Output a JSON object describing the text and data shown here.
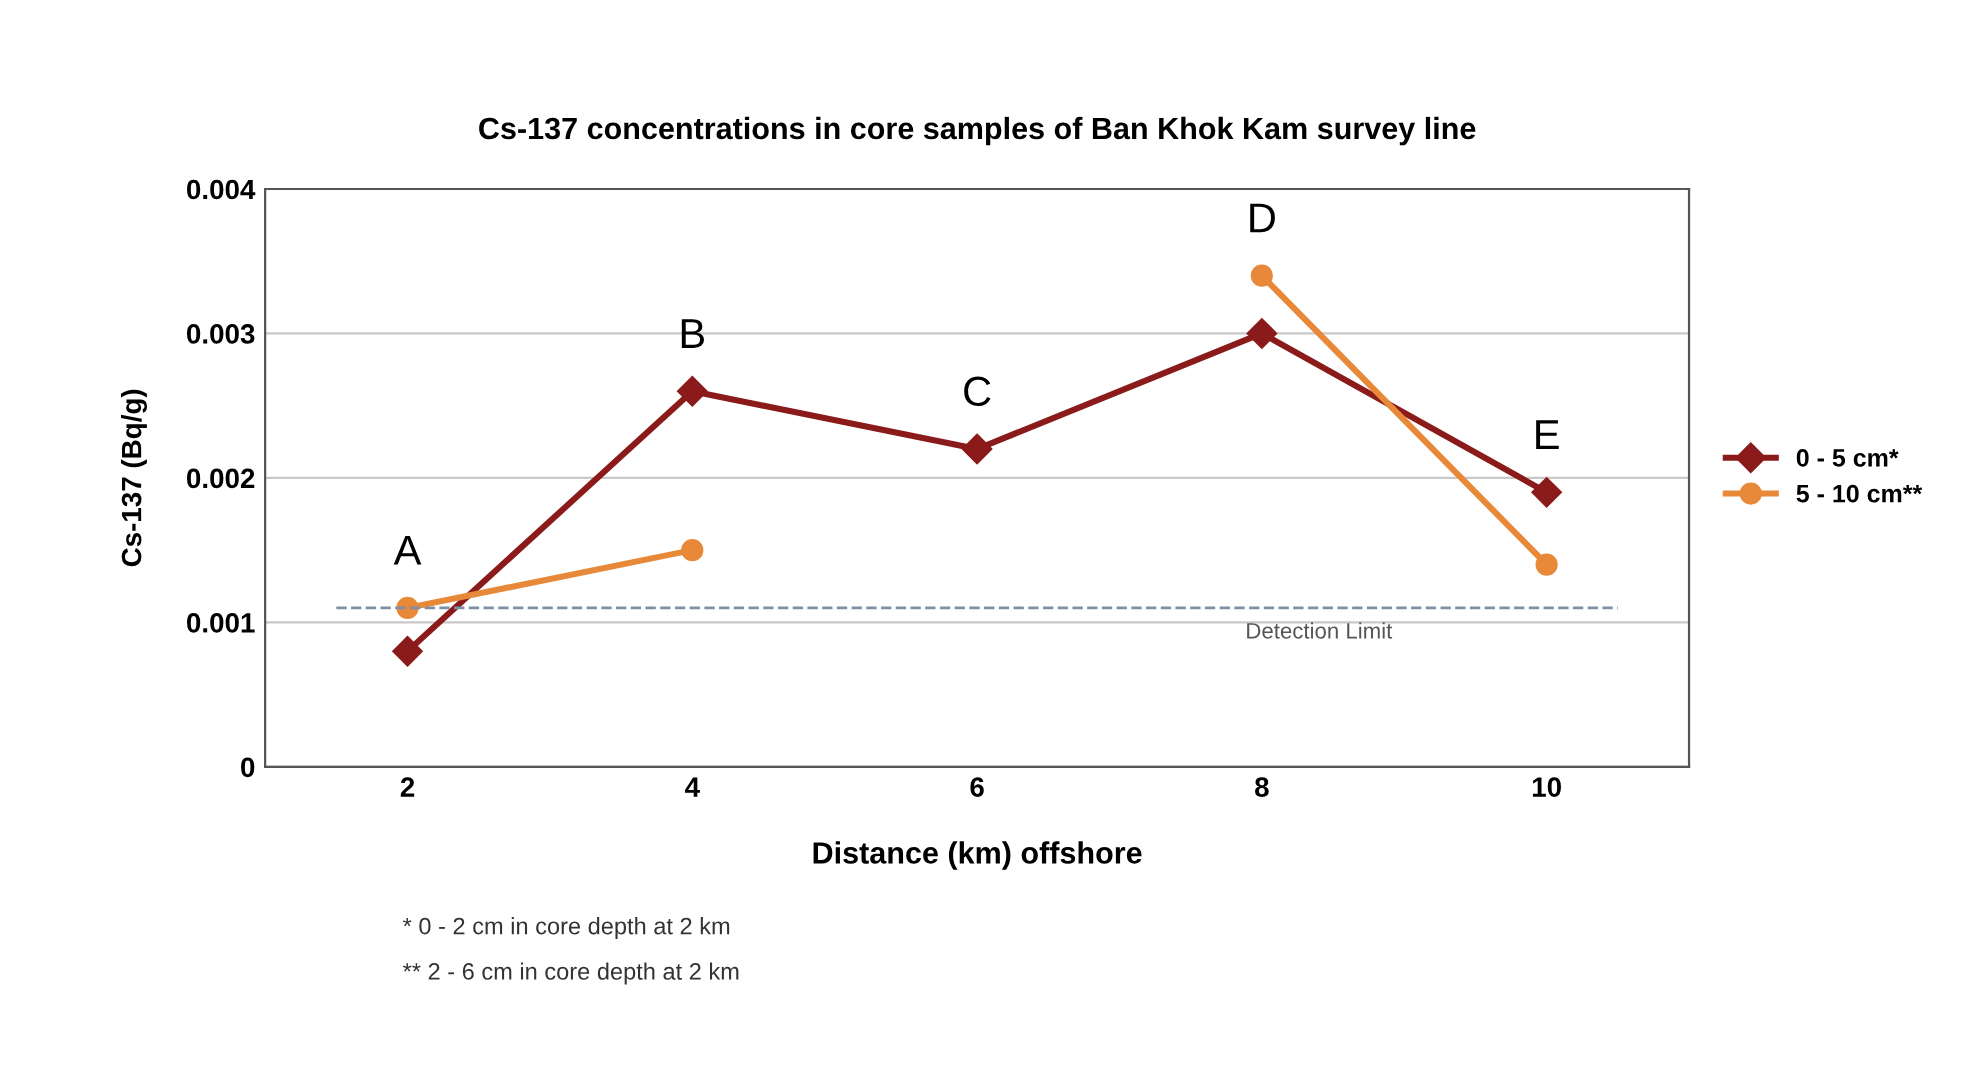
{
  "chart_data": {
    "type": "line",
    "title": "Cs-137 concentrations in core samples of Ban Khok Kam survey line",
    "xlabel": "Distance (km) offshore",
    "ylabel": "Cs-137 (Bq/g)",
    "categories": [
      "2",
      "4",
      "6",
      "8",
      "10"
    ],
    "series": [
      {
        "name": "0 - 5 cm*",
        "color": "#8b1a1a",
        "marker": "diamond",
        "values": [
          0.0008,
          0.0026,
          0.0022,
          0.003,
          0.0019
        ]
      },
      {
        "name": "5 - 10 cm**",
        "color": "#e8893a",
        "marker": "circle",
        "values": [
          0.0011,
          0.0015,
          null,
          0.0034,
          0.0014
        ]
      }
    ],
    "ylim": [
      0,
      0.004
    ],
    "yticks": [
      0,
      0.001,
      0.002,
      0.003,
      0.004
    ],
    "grid": "y",
    "legend": "right",
    "line_style": "solid",
    "ref_lines": [
      {
        "axis": "y",
        "value": 0.0011,
        "label": "Detection Limit",
        "color": "#7f8fa6",
        "line_style": "dashed"
      }
    ],
    "annotations": [
      "A",
      "B",
      "C",
      "D",
      "E",
      "* 0 - 2 cm in core depth at 2 km",
      "** 2 - 6 cm in core depth at 2 km"
    ]
  }
}
